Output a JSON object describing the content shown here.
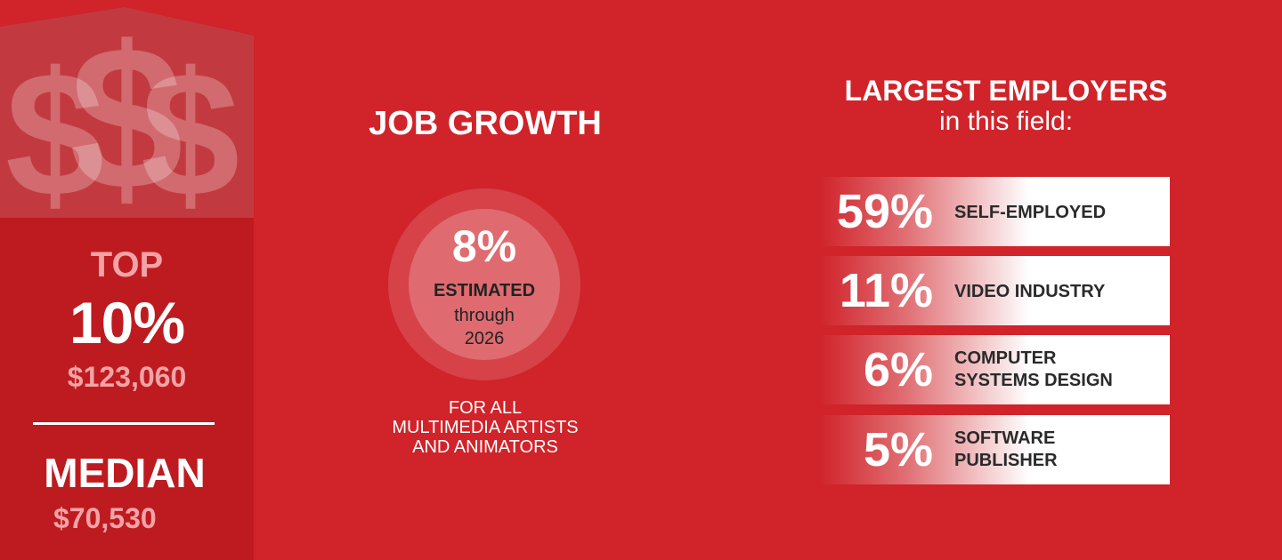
{
  "salary": {
    "icon": "dollar-signs-icon",
    "top_label": "TOP",
    "top_value": "10%",
    "top_salary": "$123,060",
    "median_label": "MEDIAN",
    "median_salary": "$70,530"
  },
  "job_growth": {
    "title": "JOB GROWTH",
    "percent": "8%",
    "estimated": "ESTIMATED",
    "through": "through",
    "year": "2026",
    "note_lines": [
      "FOR ALL",
      "MULTIMEDIA ARTISTS",
      "AND ANIMATORS"
    ]
  },
  "employers": {
    "title": "LARGEST EMPLOYERS",
    "subtitle": "in this field:",
    "items": [
      {
        "percent": "59%",
        "label_lines": [
          "SELF-EMPLOYED"
        ]
      },
      {
        "percent": "11%",
        "label_lines": [
          "VIDEO INDUSTRY"
        ]
      },
      {
        "percent": "6%",
        "label_lines": [
          "COMPUTER",
          "SYSTEMS DESIGN"
        ]
      },
      {
        "percent": "5%",
        "label_lines": [
          "SOFTWARE",
          "PUBLISHER"
        ]
      }
    ]
  },
  "colors": {
    "background": "#d0232a",
    "panel": "#bd1b20",
    "panel_top": "#c4474b",
    "accent_pink": "#f2a3a6"
  }
}
